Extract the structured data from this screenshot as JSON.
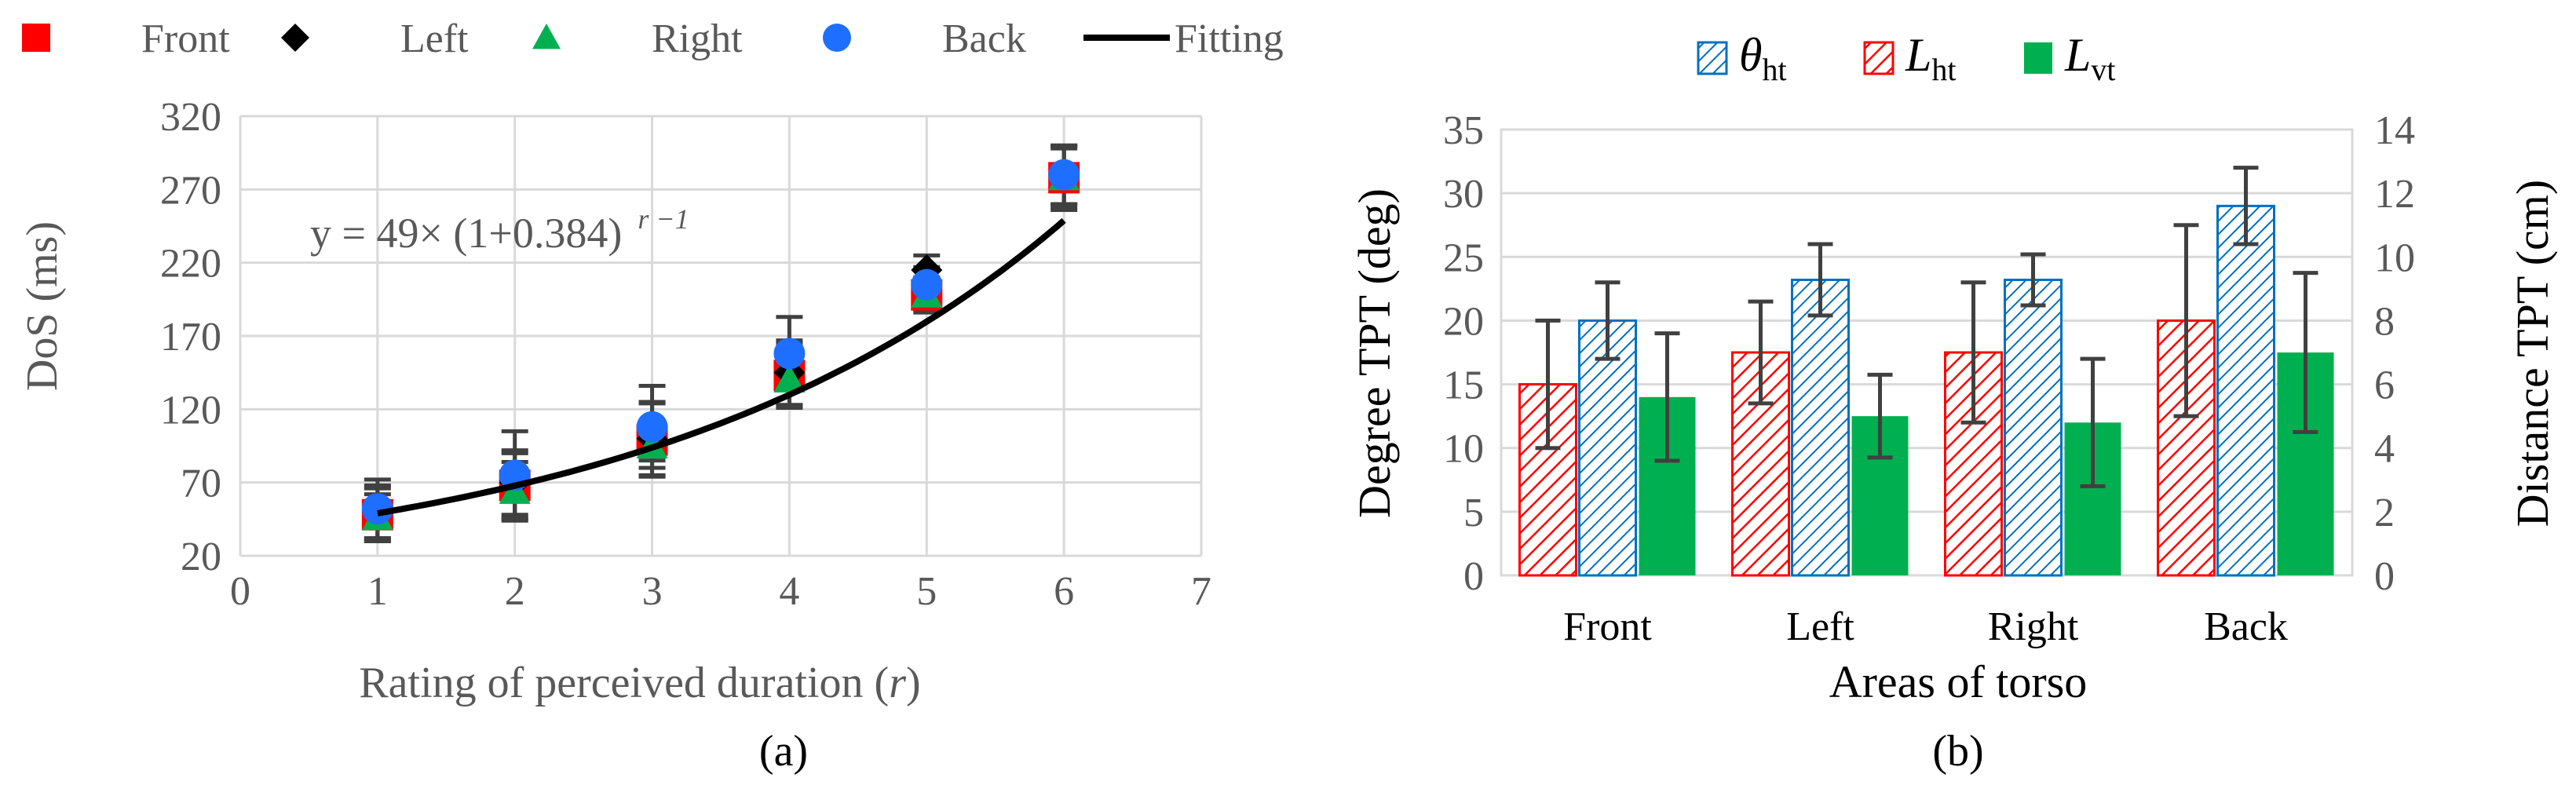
{
  "chart_data": [
    {
      "type": "scatter",
      "panel_label": "(a)",
      "xlabel": "Rating of  perceived duration (",
      "xlabel_var": "r",
      "xlabel_close": ")",
      "ylabel": "DoS (ms)",
      "xlim": [
        0,
        7
      ],
      "ylim": [
        20,
        320
      ],
      "x_ticks": [
        "0",
        "1",
        "2",
        "3",
        "4",
        "5",
        "6",
        "7"
      ],
      "y_ticks": [
        "20",
        "70",
        "120",
        "170",
        "220",
        "270",
        "320"
      ],
      "grid": true,
      "legend_position": "top",
      "equation": {
        "main": "y = 49×  (1+0.384)",
        "exponent": "r −1"
      },
      "series": [
        {
          "name": "Front",
          "marker": "square",
          "color": "#ff0000",
          "x": [
            1,
            2,
            3,
            4,
            5,
            6
          ],
          "y": [
            48,
            68,
            99,
            143,
            198,
            278
          ],
          "err": [
            18,
            22,
            25,
            22,
            12,
            22
          ]
        },
        {
          "name": "Left",
          "marker": "diamond",
          "color": "#000000",
          "x": [
            1,
            2,
            3,
            4,
            5,
            6
          ],
          "y": [
            50,
            70,
            100,
            145,
            215,
            280
          ],
          "err": [
            18,
            22,
            25,
            22,
            10,
            20
          ]
        },
        {
          "name": "Right",
          "marker": "triangle",
          "color": "#00b050",
          "x": [
            1,
            2,
            3,
            4,
            5,
            6
          ],
          "y": [
            46,
            64,
            95,
            140,
            198,
            278
          ],
          "err": [
            16,
            20,
            10,
            18,
            10,
            20
          ]
        },
        {
          "name": "Back",
          "marker": "circle",
          "color": "#1e6fff",
          "x": [
            1,
            2,
            3,
            4,
            5,
            6
          ],
          "y": [
            52,
            75,
            108,
            158,
            205,
            280
          ],
          "err": [
            20,
            30,
            28,
            25,
            12,
            20
          ]
        },
        {
          "name": "Fitting",
          "marker": "line",
          "color": "#000000",
          "model": {
            "a": 49,
            "b": 0.384
          },
          "x_range": [
            1,
            6
          ]
        }
      ]
    },
    {
      "type": "bar",
      "panel_label": "(b)",
      "xlabel": "Areas of torso",
      "ylabel_left": "Degree  TPT (deg)",
      "ylabel_right": "Distance  TPT (cm)",
      "categories": [
        "Front",
        "Left",
        "Right",
        "Back"
      ],
      "ylim_left": [
        0,
        35
      ],
      "ylim_right": [
        0,
        14
      ],
      "y_ticks_left": [
        "0",
        "5",
        "10",
        "15",
        "20",
        "25",
        "30",
        "35"
      ],
      "y_ticks_right": [
        "0",
        "2",
        "4",
        "6",
        "8",
        "10",
        "12",
        "14"
      ],
      "grid": true,
      "legend_position": "top",
      "legend": [
        {
          "sym": "θ",
          "sub": "ht"
        },
        {
          "sym": "L",
          "sub": "ht"
        },
        {
          "sym": "L",
          "sub": "vt"
        }
      ],
      "series": [
        {
          "name": "L_ht",
          "axis": "right",
          "pattern": "red-hatch",
          "color": "#ff0000",
          "values": [
            6.0,
            7.0,
            7.0,
            8.0
          ],
          "err": [
            2.0,
            1.6,
            2.2,
            3.0
          ]
        },
        {
          "name": "theta_ht",
          "axis": "left",
          "pattern": "blue-hatch",
          "color": "#0070c0",
          "values": [
            20,
            23.2,
            23.2,
            29
          ],
          "err": [
            3.0,
            2.8,
            2.0,
            3.0
          ]
        },
        {
          "name": "L_vt",
          "axis": "right",
          "pattern": "solid",
          "color": "#00b050",
          "values": [
            5.6,
            5.0,
            4.8,
            7.0
          ],
          "err": [
            2.0,
            1.3,
            2.0,
            2.5
          ]
        }
      ]
    }
  ]
}
